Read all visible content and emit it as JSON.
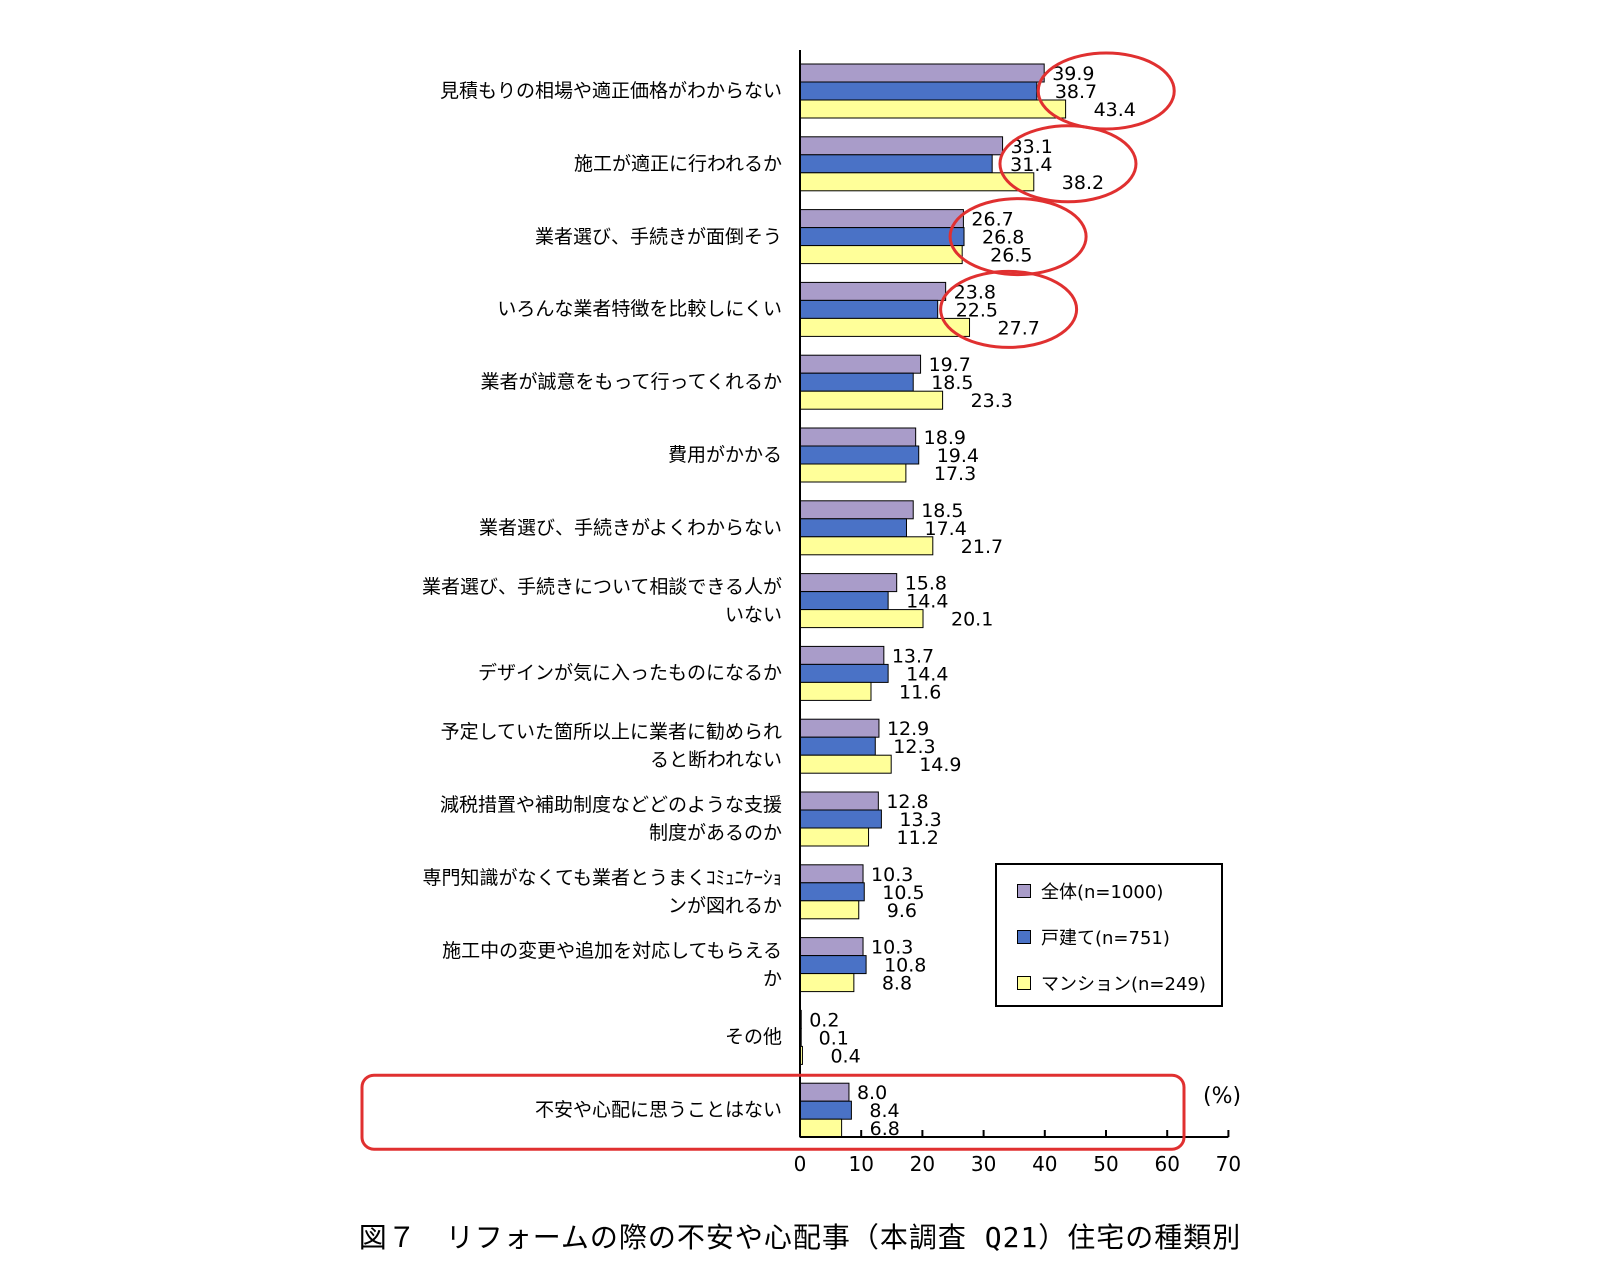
{
  "colors": {
    "all": "#a99cc9",
    "house": "#4a72c6",
    "mansion": "#ffff99",
    "highlight": "#e03030"
  },
  "chart_data": {
    "type": "bar",
    "orientation": "horizontal",
    "title": "図７　リフォームの際の不安や心配事（本調査 Q21）住宅の種類別",
    "unit_label": "(%)",
    "xlim": [
      0,
      70
    ],
    "x_ticks": [
      "0",
      "10",
      "20",
      "30",
      "40",
      "50",
      "60",
      "70"
    ],
    "categories": [
      "見積もりの相場や適正価格がわからない",
      "施工が適正に行われるか",
      "業者選び、手続きが面倒そう",
      "いろんな業者特徴を比較しにくい",
      "業者が誠意をもって行ってくれるか",
      "費用がかかる",
      "業者選び、手続きがよくわからない",
      "業者選び、手続きについて相談できる人が\nいない",
      "デザインが気に入ったものになるか",
      "予定していた箇所以上に業者に勧められ\nると断われない",
      "減税措置や補助制度などどのような支援\n制度があるのか",
      "専門知識がなくても業者とうまくｺﾐｭﾆｹｰｼｮ\nンが図れるか",
      "施工中の変更や追加を対応してもらえる\nか",
      "その他",
      "不安や心配に思うことはない"
    ],
    "series": [
      {
        "name": "全体(n=1000)",
        "values": [
          39.9,
          33.1,
          26.7,
          23.8,
          19.7,
          18.9,
          18.5,
          15.8,
          13.7,
          12.9,
          12.8,
          10.3,
          10.3,
          0.2,
          8.0
        ],
        "labels": [
          "39.9",
          "33.1",
          "26.7",
          "23.8",
          "19.7",
          "18.9",
          "18.5",
          "15.8",
          "13.7",
          "12.9",
          "12.8",
          "10.3",
          "10.3",
          "0.2",
          "8.0"
        ]
      },
      {
        "name": "戸建て(n=751)",
        "values": [
          38.7,
          31.4,
          26.8,
          22.5,
          18.5,
          19.4,
          17.4,
          14.4,
          14.4,
          12.3,
          13.3,
          10.5,
          10.8,
          0.1,
          8.4
        ],
        "labels": [
          "38.7",
          "31.4",
          "26.8",
          "22.5",
          "18.5",
          "19.4",
          "17.4",
          "14.4",
          "14.4",
          "12.3",
          "13.3",
          "10.5",
          "10.8",
          "0.1",
          "8.4"
        ]
      },
      {
        "name": "マンション(n=249)",
        "values": [
          43.4,
          38.2,
          26.5,
          27.7,
          23.3,
          17.3,
          21.7,
          20.1,
          11.6,
          14.9,
          11.2,
          9.6,
          8.8,
          0.4,
          6.8
        ],
        "labels": [
          "43.4",
          "38.2",
          "26.5",
          "27.7",
          "23.3",
          "17.3",
          "21.7",
          "20.1",
          "11.6",
          "14.9",
          "11.2",
          "9.6",
          "8.8",
          "0.4",
          "6.8"
        ]
      }
    ],
    "legend_position": "lower-right, inside plot",
    "annotations": [
      "red ellipses around the value labels of the top four categories",
      "red rounded rectangle around the 不安や心配に思うことはない row"
    ]
  }
}
